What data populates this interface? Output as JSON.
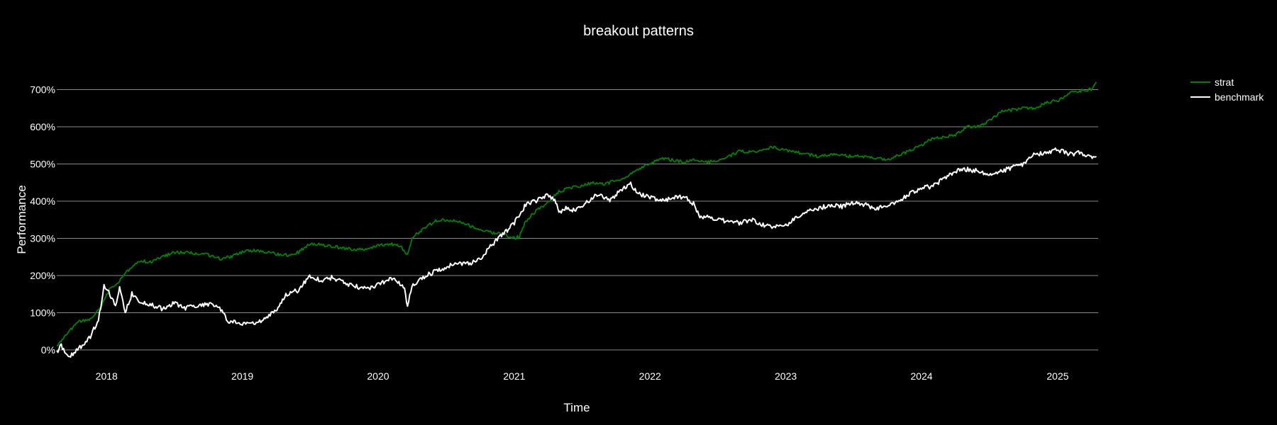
{
  "chart_data": {
    "type": "line",
    "title": "breakout patterns",
    "xlabel": "Time",
    "ylabel": "Performance",
    "xlim": [
      "2017-08-20",
      "2025-04-20"
    ],
    "ylim": [
      -50,
      750
    ],
    "x_ticks": [
      "2018",
      "2019",
      "2020",
      "2021",
      "2022",
      "2023",
      "2024",
      "2025"
    ],
    "y_ticks": [
      0,
      100,
      200,
      300,
      400,
      500,
      600,
      700
    ],
    "y_tick_suffix": "%",
    "grid": "horizontal",
    "legend_position": "top-right",
    "colors": {
      "background": "#000000",
      "grid": "#888888",
      "text": "#ffffff"
    },
    "series": [
      {
        "name": "strat",
        "color": "#008000",
        "x": [
          "2017-08-20",
          "2017-09-15",
          "2017-10-15",
          "2017-11-15",
          "2017-12-15",
          "2018-01-10",
          "2018-02-01",
          "2018-03-01",
          "2018-04-01",
          "2018-05-01",
          "2018-06-01",
          "2018-07-01",
          "2018-08-01",
          "2018-09-01",
          "2018-10-01",
          "2018-11-01",
          "2018-12-01",
          "2019-01-01",
          "2019-02-01",
          "2019-03-01",
          "2019-04-01",
          "2019-05-01",
          "2019-06-01",
          "2019-07-01",
          "2019-08-01",
          "2019-09-01",
          "2019-10-01",
          "2019-11-01",
          "2019-12-01",
          "2020-01-01",
          "2020-02-01",
          "2020-03-01",
          "2020-03-20",
          "2020-04-01",
          "2020-05-01",
          "2020-06-01",
          "2020-07-01",
          "2020-08-01",
          "2020-09-01",
          "2020-10-01",
          "2020-11-01",
          "2020-12-01",
          "2021-01-01",
          "2021-01-15",
          "2021-02-01",
          "2021-03-01",
          "2021-04-01",
          "2021-05-01",
          "2021-06-01",
          "2021-07-01",
          "2021-08-01",
          "2021-09-01",
          "2021-10-01",
          "2021-11-01",
          "2021-12-01",
          "2022-01-01",
          "2022-02-01",
          "2022-03-01",
          "2022-04-01",
          "2022-05-01",
          "2022-06-01",
          "2022-07-01",
          "2022-08-01",
          "2022-09-01",
          "2022-10-01",
          "2022-11-01",
          "2022-12-01",
          "2023-01-01",
          "2023-02-01",
          "2023-03-01",
          "2023-04-01",
          "2023-05-01",
          "2023-06-01",
          "2023-07-01",
          "2023-08-01",
          "2023-09-01",
          "2023-10-01",
          "2023-11-01",
          "2023-12-01",
          "2024-01-01",
          "2024-02-01",
          "2024-03-01",
          "2024-04-01",
          "2024-05-01",
          "2024-06-01",
          "2024-07-01",
          "2024-08-01",
          "2024-09-01",
          "2024-10-01",
          "2024-11-01",
          "2024-12-01",
          "2025-01-01",
          "2025-02-01",
          "2025-03-01",
          "2025-04-01",
          "2025-04-15"
        ],
        "values": [
          10,
          40,
          75,
          80,
          110,
          165,
          180,
          215,
          240,
          235,
          250,
          262,
          262,
          258,
          255,
          245,
          250,
          262,
          268,
          262,
          258,
          255,
          262,
          285,
          282,
          278,
          272,
          268,
          272,
          280,
          285,
          278,
          255,
          300,
          325,
          345,
          350,
          345,
          335,
          322,
          315,
          312,
          300,
          305,
          345,
          375,
          395,
          425,
          435,
          440,
          450,
          445,
          455,
          465,
          485,
          500,
          515,
          510,
          505,
          512,
          505,
          508,
          520,
          535,
          530,
          540,
          545,
          535,
          530,
          525,
          520,
          525,
          522,
          520,
          520,
          515,
          512,
          522,
          535,
          550,
          570,
          570,
          578,
          600,
          600,
          615,
          640,
          645,
          650,
          648,
          665,
          670,
          690,
          695,
          700,
          720
        ]
      },
      {
        "name": "benchmark",
        "color": "#ffffff",
        "x": [
          "2017-08-20",
          "2017-09-01",
          "2017-09-20",
          "2017-10-15",
          "2017-11-15",
          "2017-12-10",
          "2017-12-25",
          "2018-01-10",
          "2018-01-25",
          "2018-02-05",
          "2018-02-20",
          "2018-03-10",
          "2018-04-01",
          "2018-05-01",
          "2018-06-01",
          "2018-07-01",
          "2018-08-01",
          "2018-09-01",
          "2018-10-01",
          "2018-11-01",
          "2018-11-25",
          "2018-12-15",
          "2019-01-01",
          "2019-02-01",
          "2019-03-01",
          "2019-04-01",
          "2019-05-01",
          "2019-06-01",
          "2019-07-01",
          "2019-08-01",
          "2019-09-01",
          "2019-10-01",
          "2019-11-01",
          "2019-12-01",
          "2020-01-01",
          "2020-02-01",
          "2020-02-20",
          "2020-03-12",
          "2020-03-20",
          "2020-04-01",
          "2020-05-01",
          "2020-06-01",
          "2020-07-01",
          "2020-08-01",
          "2020-09-01",
          "2020-10-01",
          "2020-11-01",
          "2020-12-01",
          "2021-01-01",
          "2021-02-01",
          "2021-03-01",
          "2021-04-01",
          "2021-04-20",
          "2021-05-01",
          "2021-05-20",
          "2021-06-15",
          "2021-07-15",
          "2021-08-15",
          "2021-09-15",
          "2021-10-15",
          "2021-11-10",
          "2021-12-01",
          "2022-01-01",
          "2022-02-01",
          "2022-03-01",
          "2022-04-01",
          "2022-05-01",
          "2022-05-15",
          "2022-06-01",
          "2022-07-01",
          "2022-08-01",
          "2022-09-01",
          "2022-10-01",
          "2022-11-01",
          "2022-12-01",
          "2023-01-01",
          "2023-02-01",
          "2023-03-01",
          "2023-04-01",
          "2023-05-01",
          "2023-06-01",
          "2023-07-01",
          "2023-08-01",
          "2023-09-01",
          "2023-10-01",
          "2023-11-01",
          "2023-12-01",
          "2024-01-01",
          "2024-02-01",
          "2024-03-01",
          "2024-04-01",
          "2024-05-01",
          "2024-06-01",
          "2024-07-01",
          "2024-08-01",
          "2024-09-01",
          "2024-10-01",
          "2024-11-01",
          "2024-12-01",
          "2025-01-01",
          "2025-02-01",
          "2025-03-01",
          "2025-04-01",
          "2025-04-15"
        ],
        "values": [
          -5,
          10,
          -20,
          0,
          30,
          80,
          170,
          150,
          120,
          165,
          100,
          150,
          130,
          120,
          110,
          125,
          112,
          120,
          122,
          115,
          70,
          75,
          70,
          72,
          80,
          105,
          150,
          160,
          200,
          185,
          195,
          180,
          170,
          165,
          175,
          190,
          185,
          170,
          115,
          170,
          195,
          210,
          220,
          235,
          230,
          245,
          280,
          310,
          340,
          390,
          400,
          415,
          405,
          370,
          380,
          375,
          395,
          420,
          400,
          430,
          445,
          420,
          410,
          400,
          408,
          412,
          390,
          355,
          360,
          350,
          345,
          340,
          350,
          335,
          330,
          335,
          358,
          375,
          380,
          390,
          385,
          395,
          390,
          380,
          385,
          400,
          420,
          435,
          440,
          460,
          480,
          485,
          480,
          470,
          480,
          490,
          500,
          525,
          530,
          538,
          525,
          530,
          518,
          520
        ]
      }
    ]
  }
}
